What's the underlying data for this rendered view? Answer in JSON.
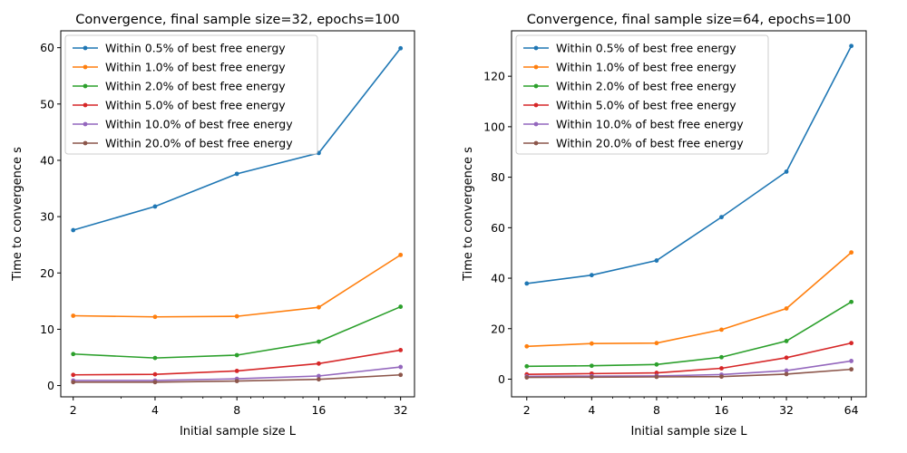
{
  "chart_data": [
    {
      "type": "line",
      "title": "Convergence, final sample size=32, epochs=100",
      "xlabel": "Initial sample size L",
      "ylabel": "Time to convergence s",
      "x": [
        2,
        4,
        8,
        16,
        32
      ],
      "x_scale": "log2",
      "xlim": [
        1.8,
        36
      ],
      "ylim": [
        -2,
        63
      ],
      "yticks": [
        0,
        10,
        20,
        30,
        40,
        50,
        60
      ],
      "xtick_labels": [
        "2",
        "4",
        "8",
        "16",
        "32"
      ],
      "grid": false,
      "legend": "top-left",
      "series": [
        {
          "name": "Within 0.5% of best free energy",
          "color": "#1f77b4",
          "values": [
            27.6,
            31.8,
            37.6,
            41.3,
            59.9
          ]
        },
        {
          "name": "Within 1.0% of best free energy",
          "color": "#ff7f0e",
          "values": [
            12.4,
            12.2,
            12.3,
            13.9,
            23.2
          ]
        },
        {
          "name": "Within 2.0% of best free energy",
          "color": "#2ca02c",
          "values": [
            5.6,
            4.9,
            5.4,
            7.8,
            14.0
          ]
        },
        {
          "name": "Within 5.0% of best free energy",
          "color": "#d62728",
          "values": [
            1.9,
            2.0,
            2.6,
            3.9,
            6.3
          ]
        },
        {
          "name": "Within 10.0% of best free energy",
          "color": "#9467bd",
          "values": [
            0.9,
            0.9,
            1.2,
            1.7,
            3.3
          ]
        },
        {
          "name": "Within 20.0% of best free energy",
          "color": "#8c564b",
          "values": [
            0.6,
            0.6,
            0.8,
            1.1,
            1.9
          ]
        }
      ]
    },
    {
      "type": "line",
      "title": "Convergence, final sample size=64, epochs=100",
      "xlabel": "Initial sample size L",
      "ylabel": "Time to convergence s",
      "x": [
        2,
        4,
        8,
        16,
        32,
        64
      ],
      "x_scale": "log2",
      "xlim": [
        1.7,
        75
      ],
      "ylim": [
        -7,
        138
      ],
      "yticks": [
        0,
        20,
        40,
        60,
        80,
        100,
        120
      ],
      "xtick_labels": [
        "2",
        "4",
        "8",
        "16",
        "32",
        "64"
      ],
      "grid": false,
      "legend": "top-left",
      "series": [
        {
          "name": "Within 0.5% of best free energy",
          "color": "#1f77b4",
          "values": [
            37.9,
            41.2,
            47.0,
            64.2,
            82.2,
            132.0
          ]
        },
        {
          "name": "Within 1.0% of best free energy",
          "color": "#ff7f0e",
          "values": [
            13.0,
            14.1,
            14.3,
            19.6,
            28.0,
            50.2
          ]
        },
        {
          "name": "Within 2.0% of best free energy",
          "color": "#2ca02c",
          "values": [
            5.1,
            5.3,
            5.8,
            8.7,
            15.1,
            30.6
          ]
        },
        {
          "name": "Within 5.0% of best free energy",
          "color": "#d62728",
          "values": [
            1.9,
            2.2,
            2.5,
            4.3,
            8.5,
            14.3
          ]
        },
        {
          "name": "Within 10.0% of best free energy",
          "color": "#9467bd",
          "values": [
            1.1,
            1.2,
            1.3,
            1.8,
            3.4,
            7.2
          ]
        },
        {
          "name": "Within 20.0% of best free energy",
          "color": "#8c564b",
          "values": [
            0.7,
            0.8,
            0.9,
            1.0,
            2.0,
            3.9
          ]
        }
      ]
    }
  ]
}
